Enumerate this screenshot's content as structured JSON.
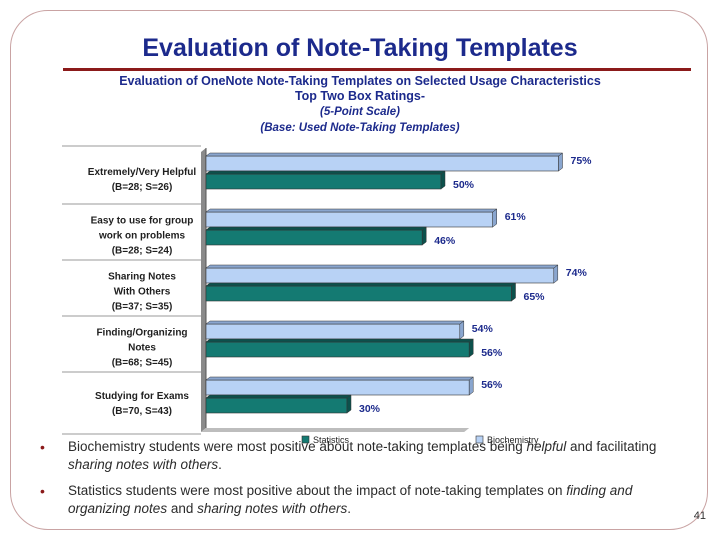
{
  "slide": {
    "title": "Evaluation of Note-Taking Templates",
    "page_number": "41"
  },
  "chart_data": {
    "type": "bar",
    "orientation": "horizontal",
    "title_lines": [
      "Evaluation of OneNote Note-Taking Templates on Selected Usage Characteristics",
      "Top Two Box Ratings-"
    ],
    "subtitle_lines": [
      "(5-Point Scale)",
      "(Base:  Used Note-Taking Templates)"
    ],
    "categories": [
      {
        "lines": [
          "Extremely/Very Helpful",
          "(B=28; S=26)"
        ]
      },
      {
        "lines": [
          "Easy to use for group",
          "work on problems",
          "(B=28; S=24)"
        ]
      },
      {
        "lines": [
          "Sharing Notes",
          "With Others",
          "(B=37; S=35)"
        ]
      },
      {
        "lines": [
          "Finding/Organizing",
          "Notes",
          "(B=68; S=45)"
        ]
      },
      {
        "lines": [
          "Studying for Exams",
          "(B=70, S=43)"
        ]
      }
    ],
    "series": [
      {
        "name": "Biochemistry",
        "color": "#b8d2f5",
        "values": [
          75,
          61,
          74,
          54,
          56
        ]
      },
      {
        "name": "Statistics",
        "color": "#147a72",
        "values": [
          50,
          46,
          65,
          56,
          30
        ]
      }
    ],
    "legend": [
      "Statistics",
      "Biochemistry"
    ],
    "xlim": [
      0,
      100
    ],
    "value_suffix": "%"
  },
  "bullets": [
    {
      "parts": [
        {
          "text": "Biochemistry students were most positive about note-taking templates being ",
          "italic": false
        },
        {
          "text": "helpful",
          "italic": true
        },
        {
          "text": " and facilitating ",
          "italic": false
        },
        {
          "text": "sharing notes with others",
          "italic": true
        },
        {
          "text": ".",
          "italic": false
        }
      ]
    },
    {
      "parts": [
        {
          "text": "Statistics students were most positive about the impact of note-taking templates on ",
          "italic": false
        },
        {
          "text": "finding and organizing notes",
          "italic": true
        },
        {
          "text": " and ",
          "italic": false
        },
        {
          "text": "sharing notes with others",
          "italic": true
        },
        {
          "text": ".",
          "italic": false
        }
      ]
    }
  ],
  "bullet_symbol": "•"
}
